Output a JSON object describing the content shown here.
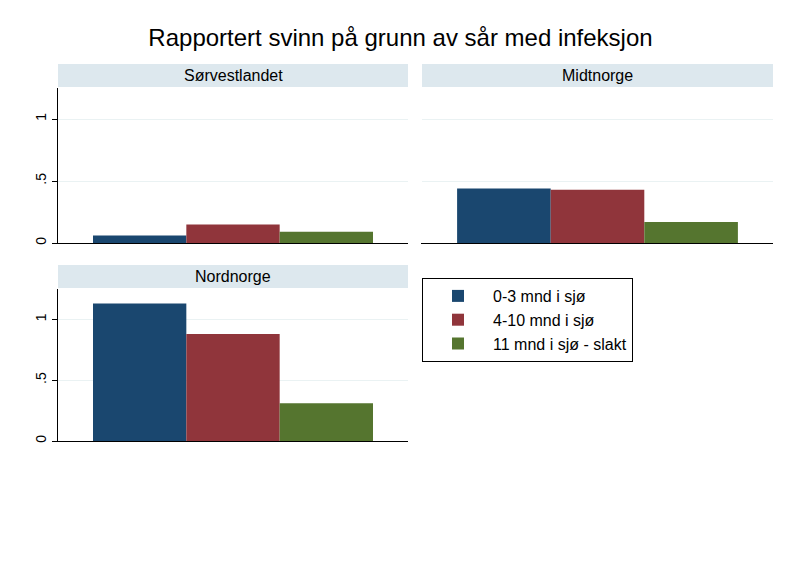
{
  "chart_data": {
    "type": "bar",
    "title": "Rapportert svinn på grunn av sår med infeksjon",
    "categories": [
      "Sørvestlandet",
      "Midtnorge",
      "Nordnorge"
    ],
    "series": [
      {
        "name": "0-3 mnd i sjø",
        "color": "#1a476f",
        "values": [
          0.06,
          0.44,
          1.13
        ]
      },
      {
        "name": "4-10 mnd i sjø",
        "color": "#90353b",
        "values": [
          0.15,
          0.43,
          0.88
        ]
      },
      {
        "name": "11 mnd i sjø - slakt",
        "color": "#55752f",
        "values": [
          0.09,
          0.17,
          0.31
        ]
      }
    ],
    "ylim": [
      0,
      1.25
    ],
    "yticks": [
      0,
      {
        "value": 0.5,
        "label": ".5"
      },
      1
    ],
    "grid": true,
    "legend": "bottom right",
    "tick_labels": "y"
  }
}
